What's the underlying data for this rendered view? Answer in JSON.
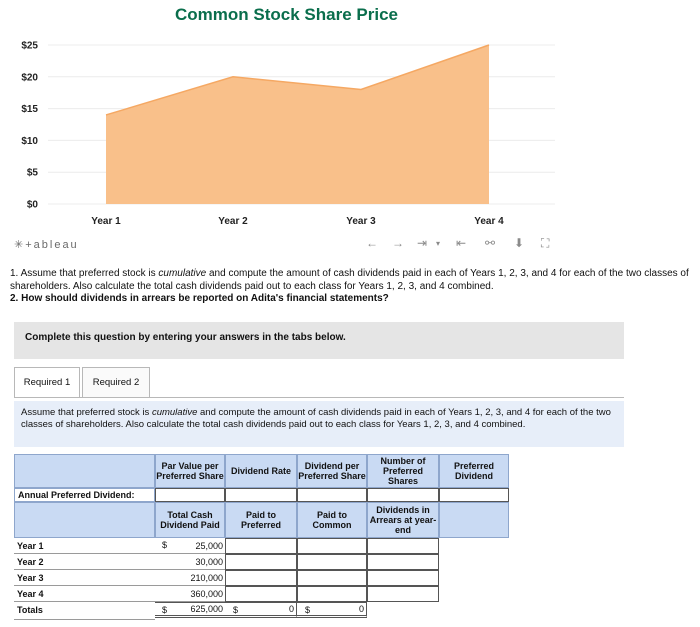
{
  "chart_data": {
    "type": "area",
    "title": "Common Stock Share Price",
    "categories": [
      "Year 1",
      "Year 2",
      "Year 3",
      "Year 4"
    ],
    "values": [
      14,
      20,
      18,
      25
    ],
    "ylim": [
      0,
      25
    ],
    "yticks": [
      0,
      5,
      10,
      15,
      20,
      25
    ],
    "ytick_labels": [
      "$0",
      "$5",
      "$10",
      "$15",
      "$20",
      "$25"
    ],
    "fill_color": "#f9c08a",
    "line_color": "#f5a863",
    "grid": true
  },
  "tableau": {
    "logo": "+ableau",
    "toolbar_icons": [
      "undo-icon",
      "redo-icon",
      "revert-icon",
      "reset-icon",
      "share-icon",
      "download-icon",
      "fullscreen-icon"
    ]
  },
  "question": {
    "part1_pre": "1. Assume that preferred stock is ",
    "part1_em": "cumulative",
    "part1_post": " and compute the amount of cash dividends paid in each of Years 1, 2, 3, and 4 for each of the two classes of shareholders. Also calculate the total cash dividends paid out to each class for Years 1, 2, 3, and 4 combined.",
    "part2": "2. How should dividends in arrears be reported on Adita's financial statements?"
  },
  "instructions": "Complete this question by entering your answers in the tabs below.",
  "tabs": [
    "Required 1",
    "Required 2"
  ],
  "required": {
    "pre": "Assume that preferred stock is ",
    "em": "cumulative",
    "post": " and compute the amount of cash dividends paid in each of Years 1, 2, 3, and 4 for each of the two classes of shareholders. Also calculate the total cash dividends paid out to each class for Years 1, 2, 3, and 4 combined."
  },
  "table": {
    "header1": [
      "Par Value per Preferred Share",
      "Dividend Rate",
      "Dividend per Preferred Share",
      "Number of Preferred Shares",
      "Preferred Dividend"
    ],
    "annual_label": "Annual Preferred Dividend:",
    "header2": [
      "Total Cash Dividend Paid",
      "Paid to Preferred",
      "Paid to Common",
      "Dividends in Arrears at year-end"
    ],
    "rows": [
      {
        "label": "Year 1",
        "total": "25,000"
      },
      {
        "label": "Year 2",
        "total": "30,000"
      },
      {
        "label": "Year 3",
        "total": "210,000"
      },
      {
        "label": "Year 4",
        "total": "360,000"
      }
    ],
    "totals": {
      "label": "Totals",
      "total": "625,000",
      "preferred": "0",
      "common": "0"
    },
    "currency": "$"
  }
}
